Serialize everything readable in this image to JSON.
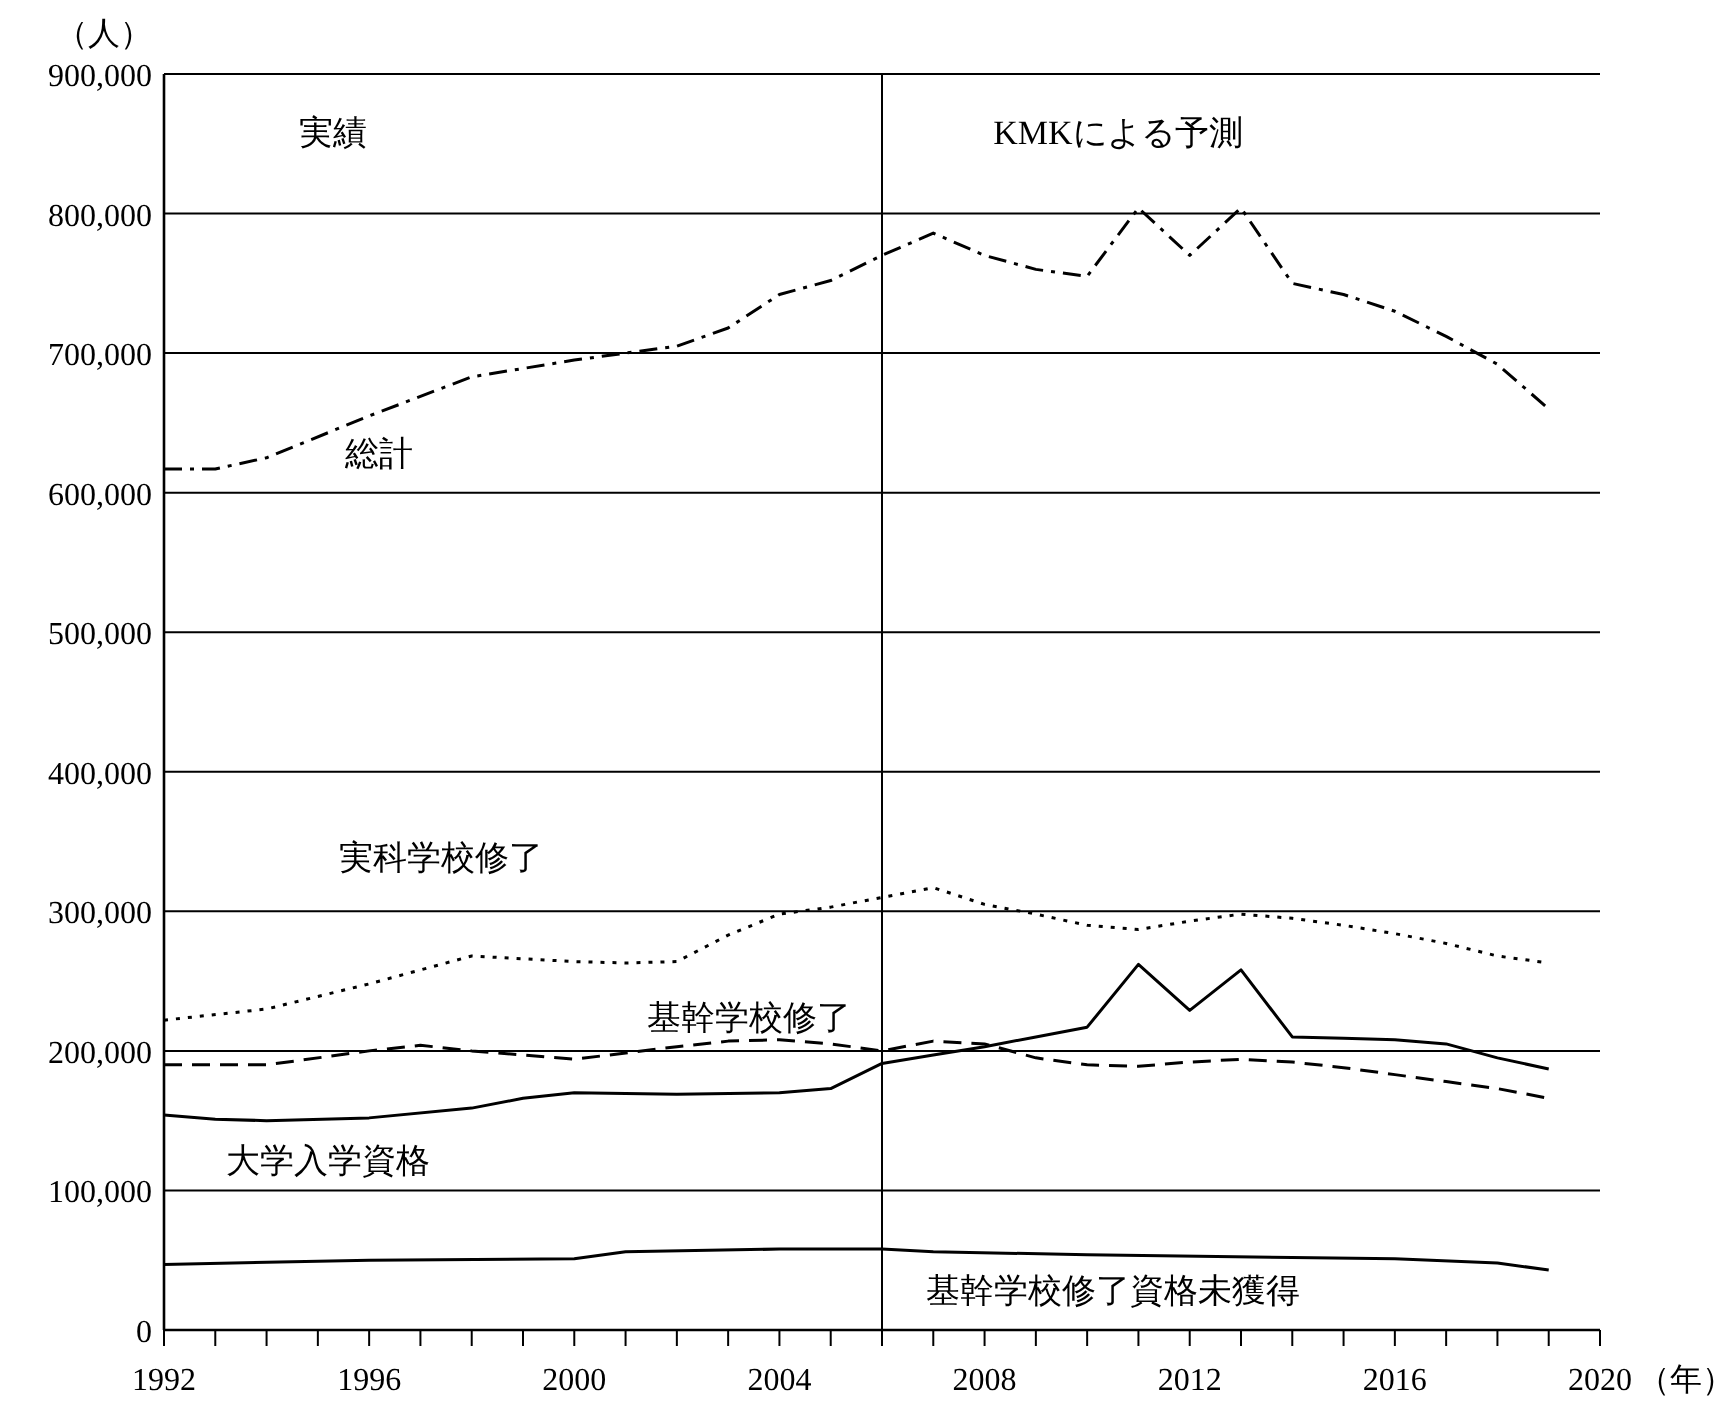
{
  "chart_data": {
    "type": "line",
    "ylabel": "（人）",
    "xlabel": "（年）",
    "xlim": [
      1992,
      2020
    ],
    "ylim": [
      0,
      900000
    ],
    "xticks": [
      1992,
      {
        "value": 1993,
        "label": null
      },
      {
        "value": 1994,
        "label": null
      },
      {
        "value": 1995,
        "label": null
      },
      1996,
      {
        "value": 1997,
        "label": null
      },
      {
        "value": 1998,
        "label": null
      },
      {
        "value": 1999,
        "label": null
      },
      2000,
      {
        "value": 2001,
        "label": null
      },
      {
        "value": 2002,
        "label": null
      },
      {
        "value": 2003,
        "label": null
      },
      2004,
      {
        "value": 2005,
        "label": null
      },
      {
        "value": 2006,
        "label": null
      },
      {
        "value": 2007,
        "label": null
      },
      2008,
      {
        "value": 2009,
        "label": null
      },
      {
        "value": 2010,
        "label": null
      },
      {
        "value": 2011,
        "label": null
      },
      2012,
      {
        "value": 2013,
        "label": null
      },
      {
        "value": 2014,
        "label": null
      },
      {
        "value": 2015,
        "label": null
      },
      2016,
      {
        "value": 2017,
        "label": null
      },
      {
        "value": 2018,
        "label": null
      },
      {
        "value": 2019,
        "label": null
      },
      2020
    ],
    "yticks": [
      {
        "value": 0,
        "label": "0"
      },
      {
        "value": 100000,
        "label": "100,000"
      },
      {
        "value": 200000,
        "label": "200,000"
      },
      {
        "value": 300000,
        "label": "300,000"
      },
      {
        "value": 400000,
        "label": "400,000"
      },
      {
        "value": 500000,
        "label": "500,000"
      },
      {
        "value": 600000,
        "label": "600,000"
      },
      {
        "value": 700000,
        "label": "700,000"
      },
      {
        "value": 800000,
        "label": "800,000"
      },
      {
        "value": 900000,
        "label": "900,000"
      }
    ],
    "grid": "y",
    "legend": false,
    "marker": "none",
    "ref_lines": [
      {
        "axis": "x",
        "value": 2006,
        "color": "#000000"
      }
    ],
    "annotations": [
      "実績",
      "KMKによる予測"
    ],
    "series": [
      {
        "name": "総計",
        "color": "#000000",
        "line_style": "dashdot",
        "x": [
          1992,
          1993,
          1994,
          1996,
          1998,
          2000,
          2002,
          2003,
          2004,
          2005,
          2006,
          2007,
          2008,
          2009,
          2010,
          2011,
          2012,
          2013,
          2014,
          2015,
          2016,
          2017,
          2018,
          2019
        ],
        "values": [
          617000,
          617000,
          625000,
          655000,
          683000,
          695000,
          705000,
          718000,
          742000,
          752000,
          770000,
          786000,
          770000,
          760000,
          755000,
          804000,
          770000,
          804000,
          750000,
          742000,
          730000,
          712000,
          692000,
          660000
        ]
      },
      {
        "name": "実科学校修了",
        "color": "#000000",
        "line_style": "dotted",
        "x": [
          1992,
          1994,
          1996,
          1998,
          2000,
          2001,
          2002,
          2003,
          2004,
          2005,
          2006,
          2007,
          2008,
          2009,
          2010,
          2011,
          2012,
          2013,
          2014,
          2015,
          2016,
          2017,
          2018,
          2019
        ],
        "values": [
          222000,
          230000,
          248000,
          268000,
          264000,
          263000,
          264000,
          283000,
          298000,
          303000,
          310000,
          317000,
          305000,
          298000,
          290000,
          287000,
          293000,
          298000,
          295000,
          290000,
          284000,
          277000,
          268000,
          263000
        ]
      },
      {
        "name": "基幹学校修了",
        "color": "#000000",
        "line_style": "dashed",
        "x": [
          1992,
          1994,
          1996,
          1997,
          1998,
          2000,
          2002,
          2003,
          2004,
          2005,
          2006,
          2007,
          2008,
          2009,
          2010,
          2011,
          2012,
          2013,
          2014,
          2015,
          2016,
          2017,
          2018,
          2019
        ],
        "values": [
          190000,
          190000,
          200000,
          204000,
          200000,
          194000,
          203000,
          207000,
          208000,
          205000,
          200000,
          207000,
          205000,
          195000,
          190000,
          189000,
          192000,
          194000,
          192000,
          188000,
          183000,
          178000,
          173000,
          166000
        ]
      },
      {
        "name": "大学入学資格",
        "color": "#000000",
        "line_style": "solid",
        "x": [
          1992,
          1993,
          1994,
          1996,
          1998,
          1999,
          2000,
          2002,
          2004,
          2005,
          2006,
          2007,
          2008,
          2009,
          2010,
          2011,
          2012,
          2013,
          2014,
          2015,
          2016,
          2017,
          2018,
          2019
        ],
        "values": [
          154000,
          151000,
          150000,
          152000,
          159000,
          166000,
          170000,
          169000,
          170000,
          173000,
          191000,
          197000,
          203000,
          210000,
          217000,
          262000,
          229000,
          258000,
          210000,
          209000,
          208000,
          205000,
          195000,
          187000
        ]
      },
      {
        "name": "基幹学校修了資格未獲得",
        "color": "#000000",
        "line_style": "solid",
        "x": [
          1992,
          1996,
          2000,
          2001,
          2004,
          2006,
          2007,
          2010,
          2014,
          2016,
          2018,
          2019
        ],
        "values": [
          47000,
          50000,
          51000,
          56000,
          58000,
          58000,
          56000,
          54000,
          52000,
          51000,
          48000,
          43000
        ]
      }
    ]
  }
}
